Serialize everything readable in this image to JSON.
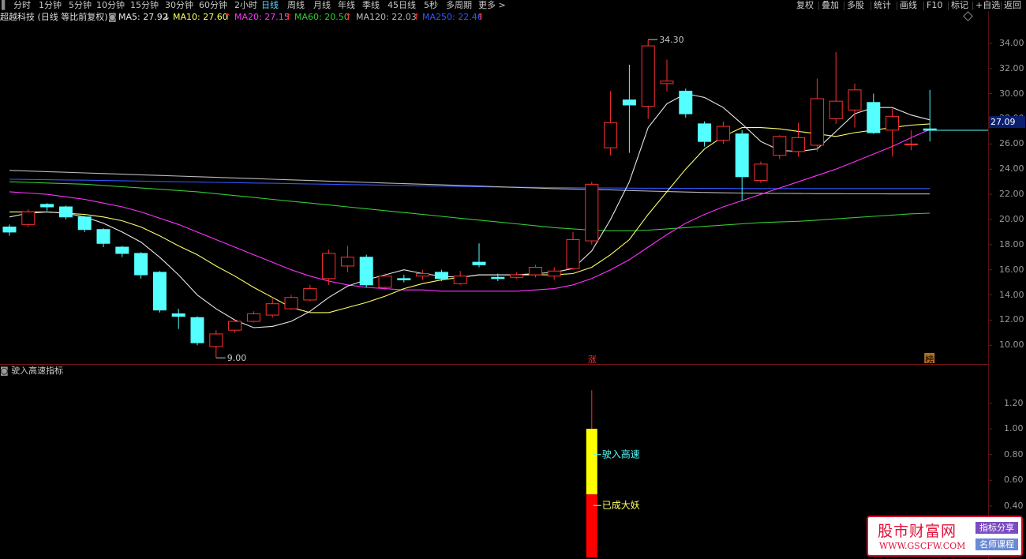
{
  "toolbar": {
    "tabs": [
      "分时",
      "1分钟",
      "5分钟",
      "10分钟",
      "15分钟",
      "30分钟",
      "60分钟",
      "2小时",
      "日线",
      "周线",
      "月线",
      "年线",
      "季线",
      "45日线",
      "5秒",
      "多周期",
      "更多 >"
    ],
    "active_tab": "日线",
    "right_buttons": [
      "复权",
      "叠加",
      "多股",
      "统计",
      "画线",
      "F10",
      "标记",
      "+自选",
      "返回"
    ]
  },
  "ma_bar": {
    "stock": "超越科技 (日线 等比前复权)",
    "ma5": "MA5: 27.92",
    "ma5_arrow": "↓",
    "ma10": "MA10: 27.60",
    "ma10_arrow": "↑",
    "ma20": "MA20: 27.15",
    "ma20_arrow": "↑",
    "ma60": "MA60: 20.50",
    "ma60_arrow": "↑",
    "ma120": "MA120: 22.03",
    "ma120_arrow": "↑",
    "ma250": "MA250: 22.46",
    "ma250_arrow": "↑"
  },
  "colors": {
    "up": "#ff3030",
    "down": "#54ffff",
    "ma5": "#e8e8e8",
    "ma10": "#ffff66",
    "ma20": "#ff33ff",
    "ma60": "#33cc33",
    "ma120": "#bbbbbb",
    "ma250": "#3355ff"
  },
  "price_axis": [
    "34.00",
    "32.00",
    "30.00",
    "28.00",
    "26.00",
    "24.00",
    "22.00",
    "20.00",
    "18.00",
    "16.00",
    "14.00",
    "12.00",
    "10.00"
  ],
  "current_price": "27.09",
  "annotations": {
    "high": "34.30",
    "low": "9.00",
    "zhang": "涨",
    "bang": "榜"
  },
  "chart_data": {
    "type": "candlestick",
    "y_range": [
      8.7,
      35.5
    ],
    "candles": [
      [
        19.4,
        19.0,
        19.6,
        18.7
      ],
      [
        19.6,
        20.6,
        20.8,
        19.4
      ],
      [
        21.2,
        21.0,
        21.3,
        20.7
      ],
      [
        21.0,
        20.2,
        21.1,
        20.0
      ],
      [
        20.2,
        19.2,
        20.3,
        19.0
      ],
      [
        19.2,
        18.1,
        19.3,
        17.8
      ],
      [
        17.8,
        17.3,
        17.9,
        17.0
      ],
      [
        17.3,
        15.6,
        17.4,
        15.3
      ],
      [
        15.8,
        12.8,
        15.9,
        12.6
      ],
      [
        12.5,
        12.3,
        12.9,
        11.3
      ],
      [
        12.2,
        10.2,
        12.3,
        10.0
      ],
      [
        9.9,
        10.9,
        11.2,
        9.0
      ],
      [
        11.2,
        11.9,
        12.1,
        11.0
      ],
      [
        11.9,
        12.5,
        12.7,
        11.8
      ],
      [
        12.4,
        13.3,
        13.7,
        12.2
      ],
      [
        12.9,
        13.8,
        14.0,
        12.8
      ],
      [
        13.6,
        14.5,
        14.8,
        13.5
      ],
      [
        15.3,
        17.3,
        17.6,
        14.8
      ],
      [
        16.3,
        17.0,
        17.9,
        15.8
      ],
      [
        17.0,
        14.8,
        17.2,
        14.6
      ],
      [
        14.6,
        15.5,
        15.7,
        14.4
      ],
      [
        15.3,
        15.2,
        15.6,
        15.0
      ],
      [
        15.5,
        15.7,
        16.0,
        15.2
      ],
      [
        15.8,
        15.3,
        16.0,
        15.1
      ],
      [
        14.9,
        15.5,
        15.9,
        14.8
      ],
      [
        16.6,
        16.4,
        18.1,
        16.2
      ],
      [
        15.4,
        15.3,
        15.7,
        15.1
      ],
      [
        15.4,
        15.6,
        15.8,
        15.3
      ],
      [
        15.6,
        16.2,
        16.4,
        15.4
      ],
      [
        15.5,
        15.9,
        16.2,
        15.2
      ],
      [
        16.1,
        18.4,
        19.0,
        16.0
      ],
      [
        18.3,
        22.8,
        23.0,
        18.0
      ],
      [
        25.7,
        27.7,
        30.2,
        25.1
      ],
      [
        29.5,
        29.1,
        32.3,
        25.3
      ],
      [
        29.0,
        33.8,
        34.3,
        28.0
      ],
      [
        30.8,
        31.0,
        32.7,
        30.2
      ],
      [
        30.2,
        28.4,
        30.4,
        28.1
      ],
      [
        27.6,
        26.2,
        27.8,
        25.8
      ],
      [
        26.3,
        27.4,
        27.8,
        26.0
      ],
      [
        26.8,
        23.4,
        27.1,
        21.5
      ],
      [
        23.1,
        24.4,
        24.6,
        22.9
      ],
      [
        25.1,
        26.6,
        26.7,
        24.8
      ],
      [
        25.4,
        26.5,
        27.7,
        25.0
      ],
      [
        25.9,
        29.6,
        31.2,
        25.4
      ],
      [
        28.0,
        29.4,
        33.3,
        27.6
      ],
      [
        28.7,
        30.3,
        30.8,
        27.3
      ],
      [
        29.3,
        26.9,
        30.0,
        26.8
      ],
      [
        27.1,
        28.2,
        28.8,
        25.0
      ],
      [
        26.0,
        26.0,
        27.1,
        25.5
      ],
      [
        27.2,
        27.09,
        30.3,
        26.2
      ]
    ],
    "ma5": [
      20.2,
      20.5,
      20.6,
      20.5,
      20.2,
      19.7,
      19.0,
      18.2,
      17.0,
      15.6,
      14.0,
      12.9,
      12.0,
      11.4,
      11.5,
      11.9,
      12.7,
      13.8,
      14.7,
      15.2,
      15.6,
      16.0,
      15.7,
      15.5,
      15.4,
      15.6,
      15.6,
      15.6,
      15.7,
      15.8,
      16.1,
      17.5,
      20.0,
      23.0,
      27.3,
      29.2,
      30.0,
      29.7,
      28.9,
      27.6,
      26.2,
      25.5,
      25.4,
      25.6,
      27.0,
      28.4,
      28.9,
      28.9,
      28.3,
      27.92
    ],
    "ma10": [
      20.6,
      20.6,
      20.6,
      20.5,
      20.4,
      20.2,
      19.9,
      19.4,
      18.7,
      17.9,
      17.2,
      16.3,
      15.5,
      14.6,
      13.8,
      13.0,
      12.6,
      12.6,
      13.0,
      13.4,
      13.9,
      14.5,
      14.9,
      15.2,
      15.4,
      15.6,
      15.6,
      15.6,
      15.6,
      15.6,
      15.7,
      16.2,
      17.2,
      18.4,
      20.4,
      22.2,
      24.0,
      25.6,
      26.6,
      27.3,
      27.3,
      27.2,
      27.0,
      26.8,
      26.6,
      26.9,
      27.1,
      27.3,
      27.5,
      27.6
    ],
    "ma20": [
      22.2,
      22.1,
      22.0,
      21.8,
      21.6,
      21.3,
      21.0,
      20.6,
      20.1,
      19.6,
      19.0,
      18.4,
      17.8,
      17.2,
      16.6,
      16.0,
      15.5,
      15.1,
      14.8,
      14.6,
      14.5,
      14.4,
      14.4,
      14.3,
      14.3,
      14.3,
      14.3,
      14.3,
      14.4,
      14.5,
      14.8,
      15.3,
      16.0,
      16.8,
      17.8,
      18.8,
      19.7,
      20.4,
      21.0,
      21.5,
      22.0,
      22.5,
      23.0,
      23.5,
      24.0,
      24.6,
      25.2,
      25.8,
      26.5,
      27.15
    ],
    "ma60": [
      23.0,
      22.95,
      22.9,
      22.85,
      22.8,
      22.7,
      22.6,
      22.5,
      22.4,
      22.3,
      22.2,
      22.05,
      21.9,
      21.75,
      21.6,
      21.45,
      21.3,
      21.15,
      21.0,
      20.85,
      20.7,
      20.55,
      20.4,
      20.25,
      20.1,
      19.95,
      19.8,
      19.65,
      19.5,
      19.35,
      19.25,
      19.15,
      19.1,
      19.1,
      19.15,
      19.25,
      19.35,
      19.45,
      19.55,
      19.65,
      19.75,
      19.8,
      19.85,
      19.95,
      20.05,
      20.15,
      20.25,
      20.35,
      20.45,
      20.5
    ],
    "ma120": [
      23.9,
      23.85,
      23.8,
      23.75,
      23.7,
      23.65,
      23.6,
      23.55,
      23.5,
      23.45,
      23.4,
      23.35,
      23.3,
      23.25,
      23.2,
      23.15,
      23.1,
      23.05,
      23.0,
      22.95,
      22.9,
      22.85,
      22.8,
      22.75,
      22.7,
      22.65,
      22.6,
      22.55,
      22.5,
      22.45,
      22.42,
      22.38,
      22.35,
      22.3,
      22.26,
      22.22,
      22.18,
      22.15,
      22.12,
      22.1,
      22.08,
      22.07,
      22.06,
      22.05,
      22.05,
      22.04,
      22.04,
      22.03,
      22.03,
      22.03
    ],
    "ma250": [
      23.2,
      23.18,
      23.16,
      23.14,
      23.12,
      23.1,
      23.08,
      23.05,
      23.02,
      23.0,
      22.98,
      22.95,
      22.93,
      22.9,
      22.88,
      22.85,
      22.82,
      22.8,
      22.77,
      22.75,
      22.72,
      22.7,
      22.67,
      22.65,
      22.63,
      22.6,
      22.58,
      22.56,
      22.55,
      22.53,
      22.52,
      22.5,
      22.5,
      22.49,
      22.48,
      22.48,
      22.47,
      22.47,
      22.47,
      22.46,
      22.46,
      22.46,
      22.46,
      22.46,
      22.46,
      22.46,
      22.46,
      22.46,
      22.46,
      22.46
    ]
  },
  "indicator": {
    "title": "驶入高速指标",
    "axis": [
      "1.20",
      "1.00",
      "0.80",
      "0.60",
      "0.40"
    ],
    "y_range": [
      0,
      1.4
    ],
    "bar_index": 31,
    "yellow_range": [
      0.49,
      1.0
    ],
    "red_range": [
      0,
      0.49
    ],
    "line_top": 1.3,
    "label_yellow": "驶入高速",
    "label_red": "已成大妖",
    "label_yellow_value": 0.8,
    "label_red_value": 0.49
  },
  "watermark": {
    "title": "股市财富网",
    "url": "WWW.GSCFW.COM",
    "tag1": "指标分享",
    "tag2": "名师课程"
  }
}
